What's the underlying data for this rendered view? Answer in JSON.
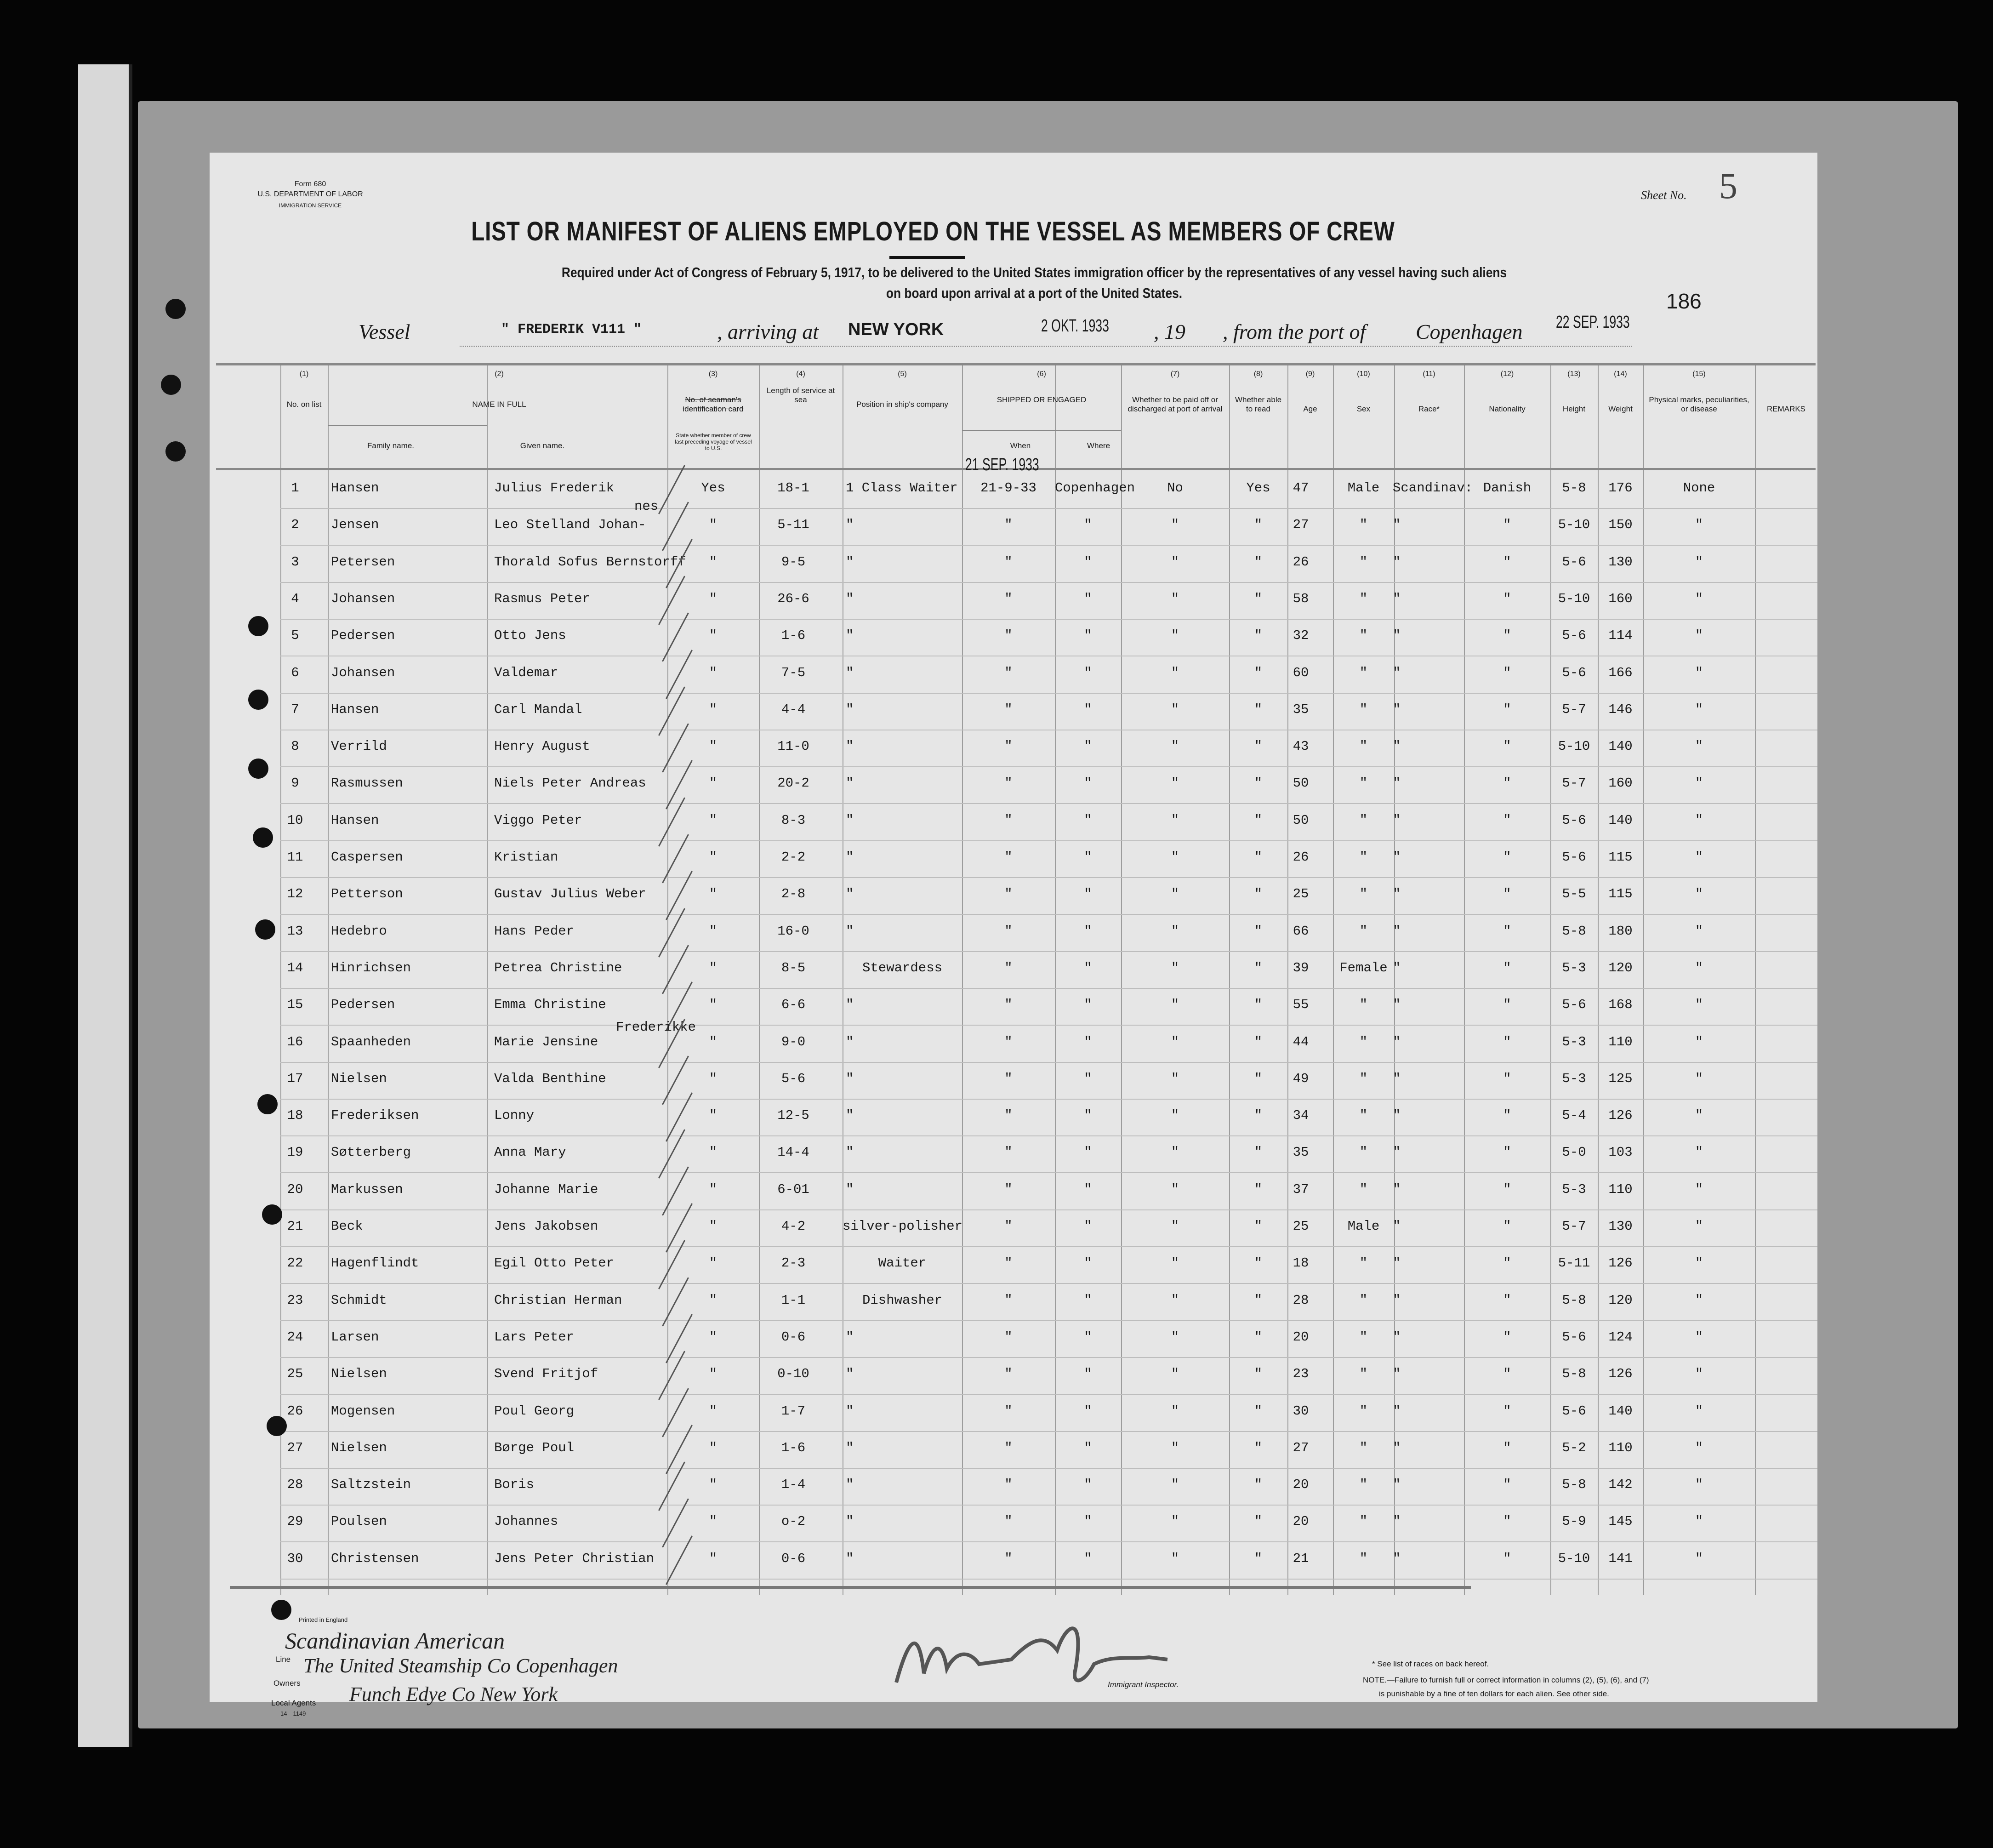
{
  "form": {
    "form_number": "Form 680",
    "department": "U.S. DEPARTMENT OF LABOR",
    "service": "IMMIGRATION SERVICE",
    "sheet_label": "Sheet No.",
    "sheet_number": "5",
    "page_number": "186",
    "title": "LIST OR MANIFEST OF ALIENS EMPLOYED ON THE VESSEL AS MEMBERS OF CREW",
    "subtitle_line1": "Required under Act of Congress of February 5, 1917, to be delivered to the United States immigration officer by the representatives of any vessel having such aliens",
    "subtitle_line2": "on board upon arrival at a port of the United States."
  },
  "voyage": {
    "vessel_label": "Vessel",
    "vessel": "\" FREDERIK V111 \"",
    "arriving_label": ", arriving at",
    "arrival_port": "NEW YORK",
    "arrival_date": "2 OKT. 1933",
    "year_label": ", 19",
    "from_label": ", from the port of",
    "departure_port": "Copenhagen",
    "departure_date": "22 SEP. 1933"
  },
  "columns": [
    {
      "num": "(1)",
      "label": "No. on list"
    },
    {
      "num": "(2)",
      "label": "NAME IN FULL",
      "sub": [
        "Family name.",
        "Given name."
      ]
    },
    {
      "num": "(3)",
      "label": "No. of seaman's identification card",
      "note": "State whether member of crew last preceding voyage of vessel to U.S."
    },
    {
      "num": "(4)",
      "label": "Length of service at sea"
    },
    {
      "num": "(5)",
      "label": "Position in ship's company"
    },
    {
      "num": "(6)",
      "label": "SHIPPED OR ENGAGED",
      "sub": [
        "When",
        "Where"
      ]
    },
    {
      "num": "(7)",
      "label": "Whether to be paid off or discharged at port of arrival"
    },
    {
      "num": "(8)",
      "label": "Whether able to read"
    },
    {
      "num": "(9)",
      "label": "Age"
    },
    {
      "num": "(10)",
      "label": "Sex"
    },
    {
      "num": "(11)",
      "label": "Race*"
    },
    {
      "num": "(12)",
      "label": "Nationality"
    },
    {
      "num": "(13)",
      "label": "Height"
    },
    {
      "num": "(14)",
      "label": "Weight"
    },
    {
      "num": "(15)",
      "label": "Physical marks, peculiarities, or disease"
    },
    {
      "num": "",
      "label": "REMARKS"
    }
  ],
  "shipped_stamp": "21 SEP. 1933",
  "rows": [
    [
      "1",
      "Hansen",
      "Julius Frederik",
      "",
      "Yes",
      "18-1",
      "1 Class Waiter",
      "21-9-33",
      "Copenhagen",
      "No",
      "Yes",
      "47",
      "Male",
      "Scandinav:",
      "Danish",
      "5-8",
      "176",
      "None"
    ],
    [
      "2",
      "Jensen",
      "Leo Stelland Johan-",
      "nes",
      "\"",
      "5-11",
      "\"",
      "\"",
      "\"",
      "\"",
      "\"",
      "27",
      "\"",
      "\"",
      "\"",
      "5-10",
      "150",
      "\""
    ],
    [
      "3",
      "Petersen",
      "Thorald Sofus Bernstorff",
      "",
      "\"",
      "9-5",
      "\"",
      "\"",
      "\"",
      "\"",
      "\"",
      "26",
      "\"",
      "\"",
      "\"",
      "5-6",
      "130",
      "\""
    ],
    [
      "4",
      "Johansen",
      "Rasmus Peter",
      "",
      "\"",
      "26-6",
      "\"",
      "\"",
      "\"",
      "\"",
      "\"",
      "58",
      "\"",
      "\"",
      "\"",
      "5-10",
      "160",
      "\""
    ],
    [
      "5",
      "Pedersen",
      "Otto Jens",
      "",
      "\"",
      "1-6",
      "\"",
      "\"",
      "\"",
      "\"",
      "\"",
      "32",
      "\"",
      "\"",
      "\"",
      "5-6",
      "114",
      "\""
    ],
    [
      "6",
      "Johansen",
      "Valdemar",
      "",
      "\"",
      "7-5",
      "\"",
      "\"",
      "\"",
      "\"",
      "\"",
      "60",
      "\"",
      "\"",
      "\"",
      "5-6",
      "166",
      "\""
    ],
    [
      "7",
      "Hansen",
      "Carl Mandal",
      "",
      "\"",
      "4-4",
      "\"",
      "\"",
      "\"",
      "\"",
      "\"",
      "35",
      "\"",
      "\"",
      "\"",
      "5-7",
      "146",
      "\""
    ],
    [
      "8",
      "Verrild",
      "Henry August",
      "",
      "\"",
      "11-0",
      "\"",
      "\"",
      "\"",
      "\"",
      "\"",
      "43",
      "\"",
      "\"",
      "\"",
      "5-10",
      "140",
      "\""
    ],
    [
      "9",
      "Rasmussen",
      "Niels Peter Andreas",
      "",
      "\"",
      "20-2",
      "\"",
      "\"",
      "\"",
      "\"",
      "\"",
      "50",
      "\"",
      "\"",
      "\"",
      "5-7",
      "160",
      "\""
    ],
    [
      "10",
      "Hansen",
      "Viggo Peter",
      "",
      "\"",
      "8-3",
      "\"",
      "\"",
      "\"",
      "\"",
      "\"",
      "50",
      "\"",
      "\"",
      "\"",
      "5-6",
      "140",
      "\""
    ],
    [
      "11",
      "Caspersen",
      "Kristian",
      "",
      "\"",
      "2-2",
      "\"",
      "\"",
      "\"",
      "\"",
      "\"",
      "26",
      "\"",
      "\"",
      "\"",
      "5-6",
      "115",
      "\""
    ],
    [
      "12",
      "Petterson",
      "Gustav Julius Weber",
      "",
      "\"",
      "2-8",
      "\"",
      "\"",
      "\"",
      "\"",
      "\"",
      "25",
      "\"",
      "\"",
      "\"",
      "5-5",
      "115",
      "\""
    ],
    [
      "13",
      "Hedebro",
      "Hans Peder",
      "",
      "\"",
      "16-0",
      "\"",
      "\"",
      "\"",
      "\"",
      "\"",
      "66",
      "\"",
      "\"",
      "\"",
      "5-8",
      "180",
      "\""
    ],
    [
      "14",
      "Hinrichsen",
      "Petrea Christine",
      "",
      "\"",
      "8-5",
      "Stewardess",
      "\"",
      "\"",
      "\"",
      "\"",
      "39",
      "Female",
      "\"",
      "\"",
      "5-3",
      "120",
      "\""
    ],
    [
      "15",
      "Pedersen",
      "Emma Christine",
      "",
      "\"",
      "6-6",
      "\"",
      "\"",
      "\"",
      "\"",
      "\"",
      "55",
      "\"",
      "\"",
      "\"",
      "5-6",
      "168",
      "\""
    ],
    [
      "16",
      "Spaanheden",
      "Marie Jensine",
      "Frederikke",
      "\"",
      "9-0",
      "\"",
      "\"",
      "\"",
      "\"",
      "\"",
      "44",
      "\"",
      "\"",
      "\"",
      "5-3",
      "110",
      "\""
    ],
    [
      "17",
      "Nielsen",
      "Valda Benthine",
      "",
      "\"",
      "5-6",
      "\"",
      "\"",
      "\"",
      "\"",
      "\"",
      "49",
      "\"",
      "\"",
      "\"",
      "5-3",
      "125",
      "\""
    ],
    [
      "18",
      "Frederiksen",
      "Lonny",
      "",
      "\"",
      "12-5",
      "\"",
      "\"",
      "\"",
      "\"",
      "\"",
      "34",
      "\"",
      "\"",
      "\"",
      "5-4",
      "126",
      "\""
    ],
    [
      "19",
      "Søtterberg",
      "Anna Mary",
      "",
      "\"",
      "14-4",
      "\"",
      "\"",
      "\"",
      "\"",
      "\"",
      "35",
      "\"",
      "\"",
      "\"",
      "5-0",
      "103",
      "\""
    ],
    [
      "20",
      "Markussen",
      "Johanne Marie",
      "",
      "\"",
      "6-01",
      "\"",
      "\"",
      "\"",
      "\"",
      "\"",
      "37",
      "\"",
      "\"",
      "\"",
      "5-3",
      "110",
      "\""
    ],
    [
      "21",
      "Beck",
      "Jens Jakobsen",
      "",
      "\"",
      "4-2",
      "silver-polisher",
      "\"",
      "\"",
      "\"",
      "\"",
      "25",
      "Male",
      "\"",
      "\"",
      "5-7",
      "130",
      "\""
    ],
    [
      "22",
      "Hagenflindt",
      "Egil Otto Peter",
      "",
      "\"",
      "2-3",
      "Waiter",
      "\"",
      "\"",
      "\"",
      "\"",
      "18",
      "\"",
      "\"",
      "\"",
      "5-11",
      "126",
      "\""
    ],
    [
      "23",
      "Schmidt",
      "Christian Herman",
      "",
      "\"",
      "1-1",
      "Dishwasher",
      "\"",
      "\"",
      "\"",
      "\"",
      "28",
      "\"",
      "\"",
      "\"",
      "5-8",
      "120",
      "\""
    ],
    [
      "24",
      "Larsen",
      "Lars Peter",
      "",
      "\"",
      "0-6",
      "\"",
      "\"",
      "\"",
      "\"",
      "\"",
      "20",
      "\"",
      "\"",
      "\"",
      "5-6",
      "124",
      "\""
    ],
    [
      "25",
      "Nielsen",
      "Svend Fritjof",
      "",
      "\"",
      "0-10",
      "\"",
      "\"",
      "\"",
      "\"",
      "\"",
      "23",
      "\"",
      "\"",
      "\"",
      "5-8",
      "126",
      "\""
    ],
    [
      "26",
      "Mogensen",
      "Poul Georg",
      "",
      "\"",
      "1-7",
      "\"",
      "\"",
      "\"",
      "\"",
      "\"",
      "30",
      "\"",
      "\"",
      "\"",
      "5-6",
      "140",
      "\""
    ],
    [
      "27",
      "Nielsen",
      "Børge Poul",
      "",
      "\"",
      "1-6",
      "\"",
      "\"",
      "\"",
      "\"",
      "\"",
      "27",
      "\"",
      "\"",
      "\"",
      "5-2",
      "110",
      "\""
    ],
    [
      "28",
      "Saltzstein",
      "Boris",
      "",
      "\"",
      "1-4",
      "\"",
      "\"",
      "\"",
      "\"",
      "\"",
      "20",
      "\"",
      "\"",
      "\"",
      "5-8",
      "142",
      "\""
    ],
    [
      "29",
      "Poulsen",
      "Johannes",
      "",
      "\"",
      "o-2",
      "\"",
      "\"",
      "\"",
      "\"",
      "\"",
      "20",
      "\"",
      "\"",
      "\"",
      "5-9",
      "145",
      "\""
    ],
    [
      "30",
      "Christensen",
      "Jens Peter Christian",
      "",
      "\"",
      "0-6",
      "\"",
      "\"",
      "\"",
      "\"",
      "\"",
      "21",
      "\"",
      "\"",
      "\"",
      "5-10",
      "141",
      "\""
    ]
  ],
  "footer": {
    "printed": "Printed in England",
    "line_label": "Line",
    "line_value": "Scandinavian American",
    "owners_label": "Owners",
    "owners_value": "The United Steamship Co Copenhagen",
    "agents_label": "Local Agents",
    "agents_value": "Funch Edye Co New York",
    "form_code": "14—1149",
    "inspector_label": "Immigrant Inspector.",
    "races_note": "* See list of races on back hereof.",
    "note_line1": "NOTE.—Failure to furnish full or correct information in columns (2), (5), (6), and (7)",
    "note_line2": "is punishable by a fine of ten dollars for each alien.  See other side."
  }
}
